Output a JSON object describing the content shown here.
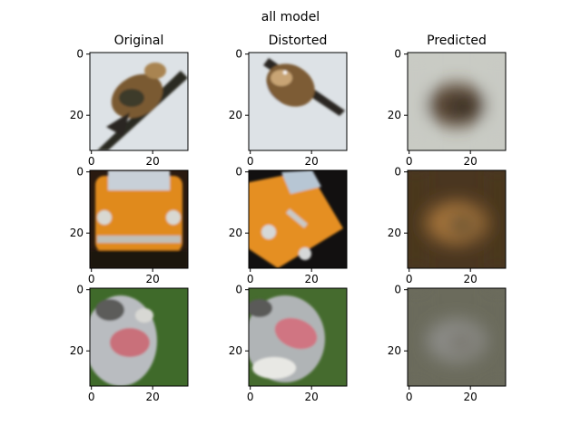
{
  "figure": {
    "suptitle": "all model"
  },
  "chart_data": {
    "type": "image-grid",
    "title": "all model",
    "columns": [
      "Original",
      "Distorted",
      "Predicted"
    ],
    "image_size": [
      32,
      32
    ],
    "x_ticks": [
      0,
      20
    ],
    "y_ticks": [
      0,
      20
    ],
    "xlim": [
      -0.5,
      31.5
    ],
    "ylim": [
      31.5,
      -0.5
    ],
    "rows": [
      {
        "subject": "bird",
        "images": [
          {
            "column": "Original",
            "background": "#dde2e6",
            "subject_color": "#7a5a33",
            "accent": "#2c2a22"
          },
          {
            "column": "Distorted",
            "background": "#dde2e6",
            "subject_color": "#7d5c34",
            "accent": "#2a2822"
          },
          {
            "column": "Predicted",
            "background": "#c9cbc4",
            "subject_color": "#5a4636",
            "accent": "#3a3026"
          }
        ]
      },
      {
        "subject": "orange car",
        "images": [
          {
            "column": "Original",
            "background": "#2a1a10",
            "subject_color": "#e08a1c",
            "accent": "#c8d0d8"
          },
          {
            "column": "Distorted",
            "background": "#121010",
            "subject_color": "#e58f20",
            "accent": "#b7c6d4"
          },
          {
            "column": "Predicted",
            "background": "#4a3620",
            "subject_color": "#a6753a",
            "accent": "#6b5434"
          }
        ]
      },
      {
        "subject": "dog",
        "images": [
          {
            "column": "Original",
            "background": "#3f6a2a",
            "subject_color": "#b9bcc0",
            "accent": "#c9707a"
          },
          {
            "column": "Distorted",
            "background": "#456b2e",
            "subject_color": "#b0b4b6",
            "accent": "#d07482"
          },
          {
            "column": "Predicted",
            "background": "#6b6b5c",
            "subject_color": "#8c8c88",
            "accent": "#7a7870"
          }
        ]
      }
    ]
  }
}
